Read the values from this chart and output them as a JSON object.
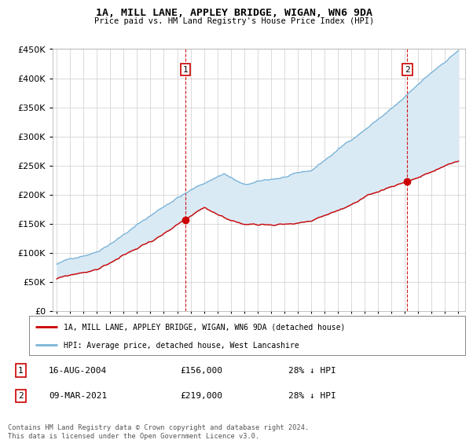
{
  "title": "1A, MILL LANE, APPLEY BRIDGE, WIGAN, WN6 9DA",
  "subtitle": "Price paid vs. HM Land Registry's House Price Index (HPI)",
  "ylim": [
    0,
    450000
  ],
  "yticks": [
    0,
    50000,
    100000,
    150000,
    200000,
    250000,
    300000,
    350000,
    400000,
    450000
  ],
  "hpi_color": "#7ab4d8",
  "hpi_fill_color": "#daeaf5",
  "price_color": "#cc0000",
  "sale1_date": "16-AUG-2004",
  "sale1_price": 156000,
  "sale1_hpi_pct": "28%",
  "sale1_year": 2004.62,
  "sale2_date": "09-MAR-2021",
  "sale2_price": 219000,
  "sale2_hpi_pct": "28%",
  "sale2_year": 2021.18,
  "legend_label_price": "1A, MILL LANE, APPLEY BRIDGE, WIGAN, WN6 9DA (detached house)",
  "legend_label_hpi": "HPI: Average price, detached house, West Lancashire",
  "footer": "Contains HM Land Registry data © Crown copyright and database right 2024.\nThis data is licensed under the Open Government Licence v3.0.",
  "bg_color": "#ffffff",
  "grid_color": "#cccccc",
  "vline_color": "#cc0000",
  "start_year": 1995,
  "end_year": 2025
}
